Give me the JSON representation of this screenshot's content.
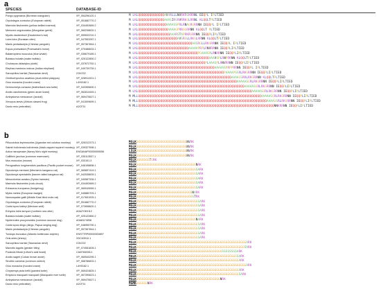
{
  "panel_a": {
    "label": "a",
    "header_species": "SPECIES",
    "header_database": "DATABASE-ID",
    "rows": [
      {
        "species": "Pongo pygmaeus (Bornean orangutan)",
        "id": "XP_054296120.1",
        "offset": 0,
        "seq": "M LKLQQQQQQQQQQQQQQAVARLLLNVRKRSKRRNL EEQPL IPLTIED"
      },
      {
        "species": "Oryctolagus cuniculus (European rabbit)",
        "id": "XP_051682770.2",
        "offset": 0,
        "seq": "M LKLQQQQQQQQQQQQQQAAASIRSRVRRKGLRRNL KLQQLTPLTIED"
      },
      {
        "species": "Marmota flaviventris (yellow-bellied marmot)",
        "id": "XP_034492669.2",
        "offset": 0,
        "seq": "M LKLQQQQQQQQQQQQQQQAAAASSPRLRNAGRGRRNN IEQQPL IPLTIED"
      },
      {
        "species": "Meriones unguiculatus (Mongolian gerbil)",
        "id": "XP_060238632.1",
        "offset": 0,
        "seq": "M LKLQQQQQQQQQQQQQQQQAAAAGPRRGGRRNN KLQQLT PLTIED"
      },
      {
        "species": "Myotis daubentonii (Daubenton's bat)",
        "id": "XP_059532210.1",
        "offset": 0,
        "seq": "M LKLQQQQQQQQQQQQQQQQQAAARSTAPRKRGRRNN IEQQPLIPLTIED"
      },
      {
        "species": "Lutra lutra (Eurasian otter)",
        "id": "XP_047553287.1",
        "offset": 0,
        "seq": "M LKLQQQQQQQQQQQQQQQQQQQQQAVSRGLLRKGLRRNN KLQQLTPLTIED"
      },
      {
        "species": "Manis pentadactyla (Chinese pangolin)",
        "id": "XP_057367844.1",
        "offset": 0,
        "seq": "M LKLQQQQQQQQQQQQQQQQQQQQQQQQQQQQQAASRGLLRKGRRNN IEQQPL IPLTIED"
      },
      {
        "species": "Equus przewalskii (Przewalski's horse)",
        "id": "XP_070486633.1",
        "offset": 0,
        "seq": "M LKLQQQQQQQQQQQQQQQQQQQQQQQQQQQAAAAAPRPLRNVRRNN IEQQPLIPLTIED"
      },
      {
        "species": "Balaenoptera musculus (blue whale)",
        "id": "XP_036679189.1",
        "offset": 0,
        "seq": "M LKLQQQQQQQQQQQQQQQQQQQQQQQQQQQQQQQQPGAAASPLRNRRNN IEQQPLIPLTIED"
      },
      {
        "species": "Bubalus bubalis (water buffalo)",
        "id": "XP_025122850.2",
        "offset": 0,
        "seq": "M LKLQQQQQQQQQQQQQQQQQQQQQQQQQQQQQQQQQQQQQQAAAVSPLRNPRRNN KLQQLTPLTIED"
      },
      {
        "species": "Choloepus didactylus (sloth)",
        "id": "XP_037672752.1",
        "offset": 0,
        "seq": "M LKLQQQQQQQQQQQQQQQQQQQQQQQQQQQQQQQQQQQQPLAAASPLRNVRRNN IEQQPLIPLTIED"
      },
      {
        "species": "Elephas maximus indicus (Indian elephant)",
        "id": "XP_049739739.1",
        "offset": 0,
        "seq": "M LKLQQQQQQQQQQQQQQQQQQQQQQQQQQQQQQQQQQQQQQQQQAAAAASPRPPRRNN IEQQPL IPLTIED"
      },
      {
        "species": "Sarcophilus harrisii (Tasmanian devil)",
        "id": "G3VZ22",
        "offset": 0,
        "seq": "M LKLQQQQQQQQQQQQQQQQQQQQQQQQQQQQQQQQQQQQQQQQQQQQQQPAAAAPSSRLRKGRRNN IEQQPLIPLTIED"
      },
      {
        "species": "Ornithorhynchus anatinus (duck-billed platypus)",
        "id": "XP_028914321.1",
        "offset": 0,
        "seq": "M LKLQQQQQQQQQQQQQQQQQQQQQQQQQQQQQQQQQQQQQQQQQQQQQQQQQQAAAAGSRRLRKGRRNN KLQQLTPLTIED"
      },
      {
        "species": "Grus monacha (hooded crane)",
        "id": "L4H0182.1",
        "offset": 0,
        "seq": "M LKLQQQQQQQQQQQQQQQQQQQQQQQQQQQQQQQQQQQQQQQQQQQQQQQQQQQQQAAAAASGRLRKGRRNN IEQQPLIPLTIED"
      },
      {
        "species": "Dermochelys coriacea (leatherback sea turtle)",
        "id": "XP_043355690.1",
        "offset": 0,
        "seq": "M LKLQQQQQQQQQQQQQQQQQQQQQQQQQQQQQQQQQQQQQQQQQQQQQQQQQQQQQQQQQAAAAASGRLRKGRRNN IEQQPLIPLTIED"
      },
      {
        "species": "Anolis carolinensis (green anole lizard)",
        "id": "XP_062814449.1",
        "offset": 0,
        "seq": "M LKLQQQQQQQQQQQQQQQQQQQQQQQQQQQQQQQQQQQQQQQQQQQQQQQQQQQQQQQQQQQQQAAAAASGRLRKGRRNN IEQQPLIPLTIED"
      },
      {
        "species": "Ambystoma mexicanum (axolotl)",
        "id": "XP_069475627.1",
        "offset": 0,
        "seq": "M MLLQQQQQQQQQQQQQQQQQQQQQQQQQQQQQQQQQQQQQQQQQQQQQQQQQQQQQQQQQQQQQQQQQQAAAAASGRLRKGRRNN IEQQPLIPLTIED"
      },
      {
        "species": "Xenopus laevis (African clawed frog)",
        "id": "XP_041009699.1",
        "offset": 0,
        "seq": "M MLLQQQQQQQQQQQQQQQQQQQQQQQQQQQQQQQQQQQQQQQQQQQQQQQQQQQQQQQQQQQQQQQQQQQQQAAAAGSRLRKGRRNN IEQQPLIPLTIED"
      },
      {
        "species": "Danio rerio (zebrafish)",
        "id": "A2CF31",
        "offset": 0,
        "seq": "M MLLQQQQQQQQQQQQQQQQQQQQQQQQQQQQQQQQQQQQQQQQQQQQQQQQQQQQQQQQQQQQQQQQQQQQQQQQQNNKRRNN IEQQPLIPLTIED"
      }
    ]
  },
  "panel_b": {
    "label": "b",
    "rows": [
      {
        "species": "Piliocolobus tephrosceles (Ugandan red colobus monkey)",
        "id": "XP_026312373.1",
        "seq": "MSLKGGGGGGGGGGGGGGGGGGGGGGGGGGGNVRK"
      },
      {
        "species": "Saimiri boliviensis boliviensis (black-capped squirrel monkey)",
        "id": "XP_039327598.1",
        "seq": "MSLKGGGGGGGGGGGGGGGGGGGGGGGGGGGNVRK"
      },
      {
        "species": "Aotus nancymaae (Nancy Ma's night monkey)",
        "id": "ENSANAP00000009056",
        "seq": "LSLKGGGGGGGGGGGGGGGGGGGGGGGGGGGNVRK"
      },
      {
        "species": "Callithrix jacchus (common marmoset)",
        "id": "XP_035113537.1",
        "seq": "MSLKGGGGGGGGGGGGGGGGGGGGGGGGGGGNVRK"
      },
      {
        "species": "Mus musculus (mouse)",
        "id": "XP_033151.3",
        "seq": "MSLKGGGGGGGTGRK"
      },
      {
        "species": "Perognathus longimembris pacificus (Pacific pocket mouse)",
        "id": "XP_048198898.1",
        "seq": "MSLKGGGGGGGGGGGGGGGGGGGGGGGGGGGGGGGGNRK"
      },
      {
        "species": "Dipodomys merriami (Merriam's kangaroo rat)",
        "id": "XP_069897419.1",
        "seq": "MSLKGGGGGGGGGGGGGGGGGGGGGGGGGGGGGGGGSARK"
      },
      {
        "species": "Dipodomys spectabilis (banner-tailed kangaroo rat)",
        "id": "XP_042538839.1",
        "seq": "MSLKGGGGGGGGGGGGGGGGGGGGGGGGGGGGGGGGSARK"
      },
      {
        "species": "Mesocricetus auratus (Syrian hamster)",
        "id": "XP_040587326.1",
        "seq": "MSLKGGGGGGGGGGGGGGGGGGGGGGGGGGGGGGGGSARK"
      },
      {
        "species": "Marmota flaviventris (rock-chuck)",
        "id": "XP_034492669.2",
        "seq": "MSLKGGGGGGGGGGGGGGGGGGGGGGGGGGGGGGGGSARK"
      },
      {
        "species": "Erinaceus europaeus (hedgehog)",
        "id": "XP_060049069.1",
        "seq": "MSLKGGGGGGGGGGGGGGGGGGGGGGGGGGGGGGGGSARK"
      },
      {
        "species": "Myles melesi (European badger)",
        "id": "XP_045880703.1",
        "seq": "MSLKGGGGGGGGGGGGGGGGGGGGGGGGGGGGGGNARK"
      },
      {
        "species": "Nannospalax galili (Middle East blind mole-rat)",
        "id": "XP_017651925.1",
        "seq": "MSLKGGGGGGGGGGGGGGGGGGGGGGGGGGGGGGSTRK"
      },
      {
        "species": "Oryctolagus cuniculus (European rabbit)",
        "id": "XP_051682770.2",
        "seq": "MSLKGGGGGGGGGGGGGGGGGGGGGGGGGGGGGGGGGSARK"
      },
      {
        "species": "Canis lupus baileyi (Mexican wolf)",
        "id": "XP_072698620.1",
        "seq": "MSLKGGGGGGGGGGGGGGGGGGGGGGGGGGGGGGGGGSARK"
      },
      {
        "species": "Enhydra lutris kenyoni (northern sea otter)",
        "id": "A0A2Y9KH12",
        "seq": "MSLKGGGGGGGGGGGGGGGGGGGGGGGGGGGGGGGGGSARK"
      },
      {
        "species": "Bubalus bubalis (water buffalo)",
        "id": "XP_025122850.2",
        "seq": "MSLKGGGGGGGGGGGGGGGGGGGGGGGGGGGGGGGGGSARK"
      },
      {
        "species": "Nyctereutes procyonoides (common raccoon dog)",
        "id": "A0A811Y6B8",
        "seq": "MSLKGGGGGGGGGGGGGGGGGGGGGGGGGGGGGGGGNARK"
      },
      {
        "species": "Canis lupus dingo (dingo, Papua singing dog)",
        "id": "XP_048955790.1",
        "seq": "MSLKGGGGGGGGGGGGGGGGGGGGGGGGGGGGGGGGGSARK"
      },
      {
        "species": "Manis pentadactyla (Chinese pangolin)",
        "id": "XP_057367844.1",
        "seq": "MSLKGGGGGGGGGGGGGGGGGGGGGGGGGGGGGGGGGSARK"
      },
      {
        "species": "Tursiops truncatus (Atlantic bottlenose dolphin)",
        "id": "ENSTTRP00000000897",
        "seq": "MSLKGGGGGGGGGGGGGGGGGGGGGGGGGGGGGGGGGSARK"
      },
      {
        "species": "Ovis aries (sheep)",
        "id": "XDC63910.1",
        "seq": "MSLKGGGGGGGGGGGGGGGGGGGGGGGGGGGGGGGGGSARK"
      },
      {
        "species": "Sarcophilus harrisii (Tasmanian devil)",
        "id": "G3VZ22",
        "seq": "MSLKGGGGGGGGGGGGGGGGGGGGGGGGGGGGGGGGGGGGGGGGGGGGGGGGGGGGGGGGGGGARK"
      },
      {
        "species": "Macrotis lagotis (greater bilby)",
        "id": "XP_074081828.1",
        "seq": "MSLKGGGGGGGGGGGGGGGGGGGGGGGGGGGGGGGGGGGGGGGGGGGGGGGGGGGGGGGGGGSARK"
      },
      {
        "species": "Podarcis lilfordi (Lilford's wall lizard)",
        "id": "CAI5784538.1",
        "seq": "MSLKGGGGGGGGGGGGGGGGGGGGGGGGGGGGGGGGGGGGGGGGGGGGGGSSSSSSSSARK"
      },
      {
        "species": "Anolis sagrei (Cuban brown anole)",
        "id": "XP_060540295.1",
        "seq": "MALKGGGGGGGGGGGGGGGGGGGGGGGGGGGGGGGGGGGGGGGGGGGGGGGGGGGGGGSARK"
      },
      {
        "species": "Struthio camelus (common ostrich)",
        "id": "XP_068786833.1",
        "seq": "MSLKGGGGGGGGGGGGGGGGGGGGGGGGGGGGGGGGGGGGGGGGGGGGGGGGGGGGGGGARK"
      },
      {
        "species": "Grus monacha (hooded crane)",
        "id": "L4H0182.1",
        "seq": "MSLKGGGGGGGGGGGGGGGGGGGGGGGGGGGGGGGGGGGGGGGGGGGGGGGGGGGGGGGGGGGARK"
      },
      {
        "species": "Chrysemys picta bellii (painted turtle)",
        "id": "XP_065424825.1",
        "seq": "MSLKGGGGGGGGGGGGGGGGGGGGGGGGGGGGGGGGGGGGGGGGGGGGGGGGGGGGGGGARK"
      },
      {
        "species": "Emydura macquarii macquarii (Macquarie river turtle)",
        "id": "XP_067395623.1",
        "seq": "MSLKGGGGGGGGGGGGGGGGGGGGGGGGGGGGGGGGGGGGGGGGGGGGGGGGGGGGGGGSARK"
      },
      {
        "species": "Ambystoma mexicanum (axolotl)",
        "id": "XP_069475627.1",
        "seq": "MSLKGGGGGGGGGGGGGGGGGGGGGGGGGGGGGGGGGGGGGGGGGGGGGNRK"
      },
      {
        "species": "Danio rerio (zebrafish)",
        "id": "A2CF31",
        "seq": "MSMKGGGGGGNRK"
      }
    ]
  },
  "colors": {
    "Q": "#e03030",
    "G": "#e7a43a",
    "A": "#5fb85f",
    "S": "#5fb85f",
    "P": "#c9b020",
    "L": "#2a55c9",
    "K": "#c04bc0",
    "R": "#c04bc0",
    "N": "#222222",
    "default": "#333333"
  }
}
